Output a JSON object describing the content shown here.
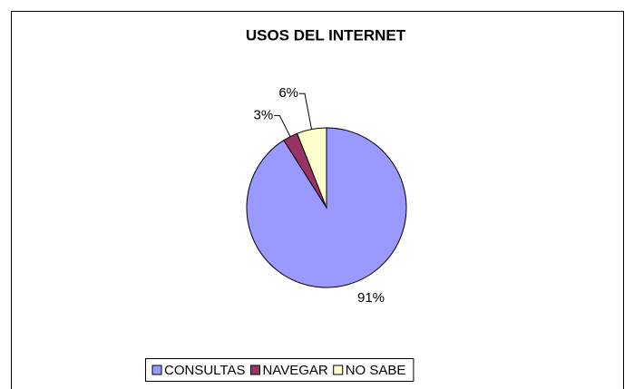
{
  "chart_data": {
    "type": "pie",
    "title": "USOS DEL INTERNET",
    "categories": [
      "CONSULTAS",
      "NAVEGAR",
      "NO SABE"
    ],
    "values": [
      91,
      3,
      6
    ],
    "value_labels": [
      "91%",
      "3%",
      "6%"
    ],
    "colors": [
      "#9999ff",
      "#993366",
      "#ffffcc"
    ],
    "legend": "bottom"
  }
}
